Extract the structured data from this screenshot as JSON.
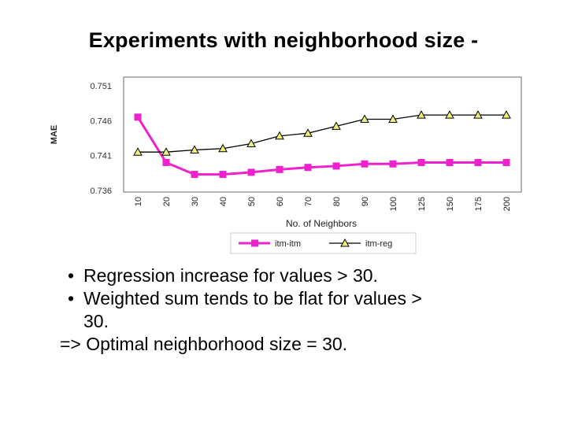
{
  "slide": {
    "title": "Experiments with neighborhood size -",
    "bullets": [
      "Regression increase for values > 30.",
      "Weighted sum tends to be flat for values >"
    ],
    "bullet_continuation": "30.",
    "conclusion": "=> Optimal neighborhood size = 30.",
    "bullet_symbol": "•"
  },
  "chart_data": {
    "type": "line",
    "xlabel": "No. of Neighbors",
    "ylabel": "MAE",
    "categories": [
      "10",
      "20",
      "30",
      "40",
      "50",
      "60",
      "70",
      "80",
      "90",
      "100",
      "125",
      "150",
      "175",
      "200"
    ],
    "y_ticks": [
      "0.751",
      "0.746",
      "0.741",
      "0.736"
    ],
    "ylim": [
      0.736,
      0.752
    ],
    "grid": false,
    "legend_position": "bottom",
    "series": [
      {
        "name": "itm-itm",
        "color": "#ee22cc",
        "marker": "square",
        "values": [
          0.7465,
          0.74,
          0.7383,
          0.7383,
          0.7386,
          0.739,
          0.7393,
          0.7395,
          0.7398,
          0.7398,
          0.74,
          0.74,
          0.74,
          0.74
        ]
      },
      {
        "name": "itm-reg",
        "color": "#000000",
        "marker_fill": "#eef07a",
        "marker": "triangle",
        "values": [
          0.7415,
          0.7415,
          0.7418,
          0.742,
          0.7427,
          0.7438,
          0.7442,
          0.7452,
          0.7462,
          0.7462,
          0.7468,
          0.7468,
          0.7468,
          0.7468
        ]
      }
    ]
  }
}
